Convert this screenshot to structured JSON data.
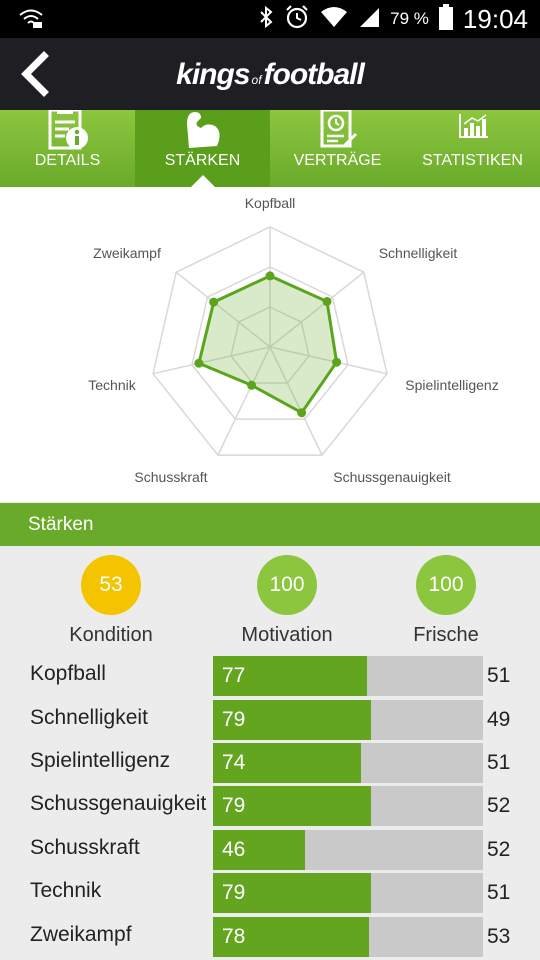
{
  "status_bar": {
    "battery_pct": "79 %",
    "time": "19:04",
    "icons": [
      "wifi-status-icon",
      "bluetooth-icon",
      "alarm-icon",
      "wifi-icon",
      "signal-icon",
      "battery-icon"
    ]
  },
  "header": {
    "logo_part1": "kings",
    "logo_part2": "of",
    "logo_part3": "football",
    "back_icon": "chevron-left-icon"
  },
  "tabs": [
    {
      "label": "DETAILS",
      "icon": "clipboard-info-icon",
      "active": false
    },
    {
      "label": "STÄRKEN",
      "icon": "flexed-arm-icon",
      "active": true
    },
    {
      "label": "VERTRÄGE",
      "icon": "contract-clock-icon",
      "active": false
    },
    {
      "label": "STATISTIKEN",
      "icon": "bar-chart-icon",
      "active": false
    }
  ],
  "radar": {
    "labels": [
      "Kopfball",
      "Schnelligkeit",
      "Spielintelligenz",
      "Schussgenauigkeit",
      "Schusskraft",
      "Technik",
      "Zweikampf"
    ],
    "values": [
      77,
      79,
      74,
      79,
      46,
      79,
      78
    ],
    "max": 130,
    "colors": {
      "stroke": "#5aa51c",
      "fill": "rgba(120,180,70,0.28)",
      "grid": "#d8d8d8"
    }
  },
  "section": {
    "title": "Stärken"
  },
  "circles": [
    {
      "value": "53",
      "label": "Kondition",
      "color": "#f5c400"
    },
    {
      "value": "100",
      "label": "Motivation",
      "color": "#8cc63f"
    },
    {
      "value": "100",
      "label": "Frische",
      "color": "#8cc63f"
    }
  ],
  "attributes": [
    {
      "name": "Kopfball",
      "value": "77",
      "compare": "51",
      "fill_fraction": 0.57
    },
    {
      "name": "Schnelligkeit",
      "value": "79",
      "compare": "49",
      "fill_fraction": 0.585
    },
    {
      "name": "Spielintelligenz",
      "value": "74",
      "compare": "51",
      "fill_fraction": 0.548
    },
    {
      "name": "Schussgenauigkeit",
      "value": "79",
      "compare": "52",
      "fill_fraction": 0.585
    },
    {
      "name": "Schusskraft",
      "value": "46",
      "compare": "52",
      "fill_fraction": 0.341
    },
    {
      "name": "Technik",
      "value": "79",
      "compare": "51",
      "fill_fraction": 0.585
    },
    {
      "name": "Zweikampf",
      "value": "78",
      "compare": "53",
      "fill_fraction": 0.578
    }
  ]
}
